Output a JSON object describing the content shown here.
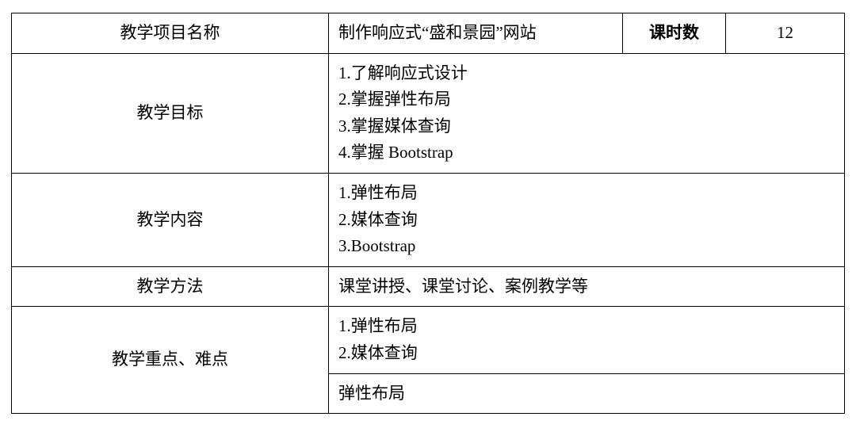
{
  "table": {
    "row1": {
      "label": "教学项目名称",
      "content": "制作响应式“盛和景园”网站",
      "hoursLabel": "课时数",
      "hoursValue": "12"
    },
    "row2": {
      "label": "教学目标",
      "content": "1.了解响应式设计\n2.掌握弹性布局\n3.掌握媒体查询\n4.掌握 Bootstrap"
    },
    "row3": {
      "label": "教学内容",
      "content": "1.弹性布局\n2.媒体查询\n3.Bootstrap"
    },
    "row4": {
      "label": "教学方法",
      "content": "课堂讲授、课堂讨论、案例教学等"
    },
    "row5": {
      "label": "教学重点、难点",
      "content1": "1.弹性布局\n2.媒体查询",
      "content2": "弹性布局"
    }
  },
  "style": {
    "borderColor": "#000000",
    "backgroundColor": "#ffffff",
    "textColor": "#000000",
    "fontSize": 21,
    "fontFamily": "SimSun"
  }
}
